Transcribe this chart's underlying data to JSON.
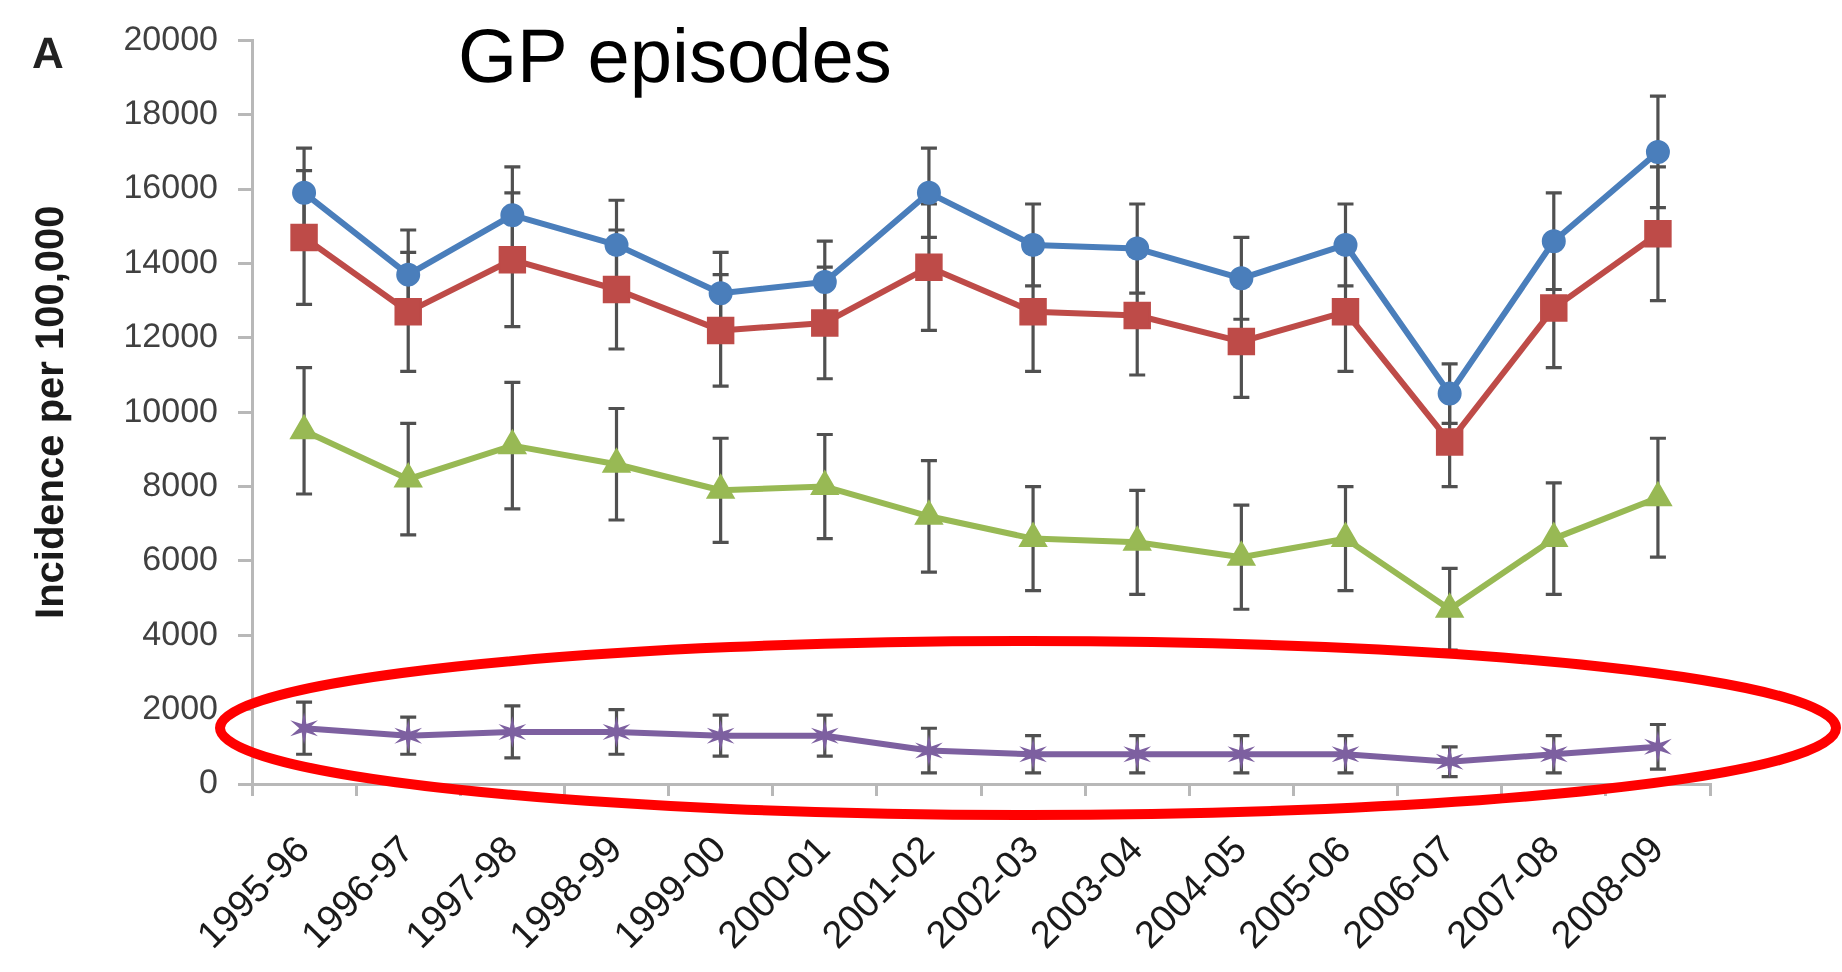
{
  "chart_data": {
    "type": "line",
    "title": "GP episodes",
    "ylabel": "Incidence per 100,000",
    "annotations": [
      "A"
    ],
    "categories": [
      "1995-96",
      "1996-97",
      "1997-98",
      "1998-99",
      "1999-00",
      "2000-01",
      "2001-02",
      "2002-03",
      "2003-04",
      "2004-05",
      "2005-06",
      "2006-07",
      "2007-08",
      "2008-09"
    ],
    "ylim": [
      0,
      20000
    ],
    "yticks": [
      0,
      2000,
      4000,
      6000,
      8000,
      10000,
      12000,
      14000,
      16000,
      18000,
      20000
    ],
    "grid": false,
    "legend": false,
    "line_style": "solid",
    "series": [
      {
        "color": "#4a7ebb",
        "marker": "circle",
        "values": [
          15900,
          13700,
          15300,
          14500,
          13200,
          13500,
          15900,
          14500,
          14400,
          13600,
          14500,
          10500,
          14600,
          17000
        ],
        "errors": [
          1200,
          1200,
          1300,
          1200,
          1100,
          1100,
          1200,
          1100,
          1200,
          1100,
          1100,
          800,
          1300,
          1500
        ]
      },
      {
        "color": "#be4b48",
        "marker": "square",
        "values": [
          14700,
          12700,
          14100,
          13300,
          12200,
          12400,
          13900,
          12700,
          12600,
          11900,
          12700,
          9200,
          12800,
          14800
        ],
        "errors": [
          1800,
          1600,
          1800,
          1600,
          1500,
          1500,
          1700,
          1600,
          1600,
          1500,
          1600,
          1200,
          1600,
          1800
        ]
      },
      {
        "color": "#98b954",
        "marker": "triangle",
        "values": [
          9500,
          8200,
          9100,
          8600,
          7900,
          8000,
          7200,
          6600,
          6500,
          6100,
          6600,
          4700,
          6600,
          7700
        ],
        "errors": [
          1700,
          1500,
          1700,
          1500,
          1400,
          1400,
          1500,
          1400,
          1400,
          1400,
          1400,
          1100,
          1500,
          1600
        ]
      },
      {
        "color": "#7d60a0",
        "marker": "cross",
        "values": [
          1500,
          1300,
          1400,
          1400,
          1300,
          1300,
          900,
          800,
          800,
          800,
          800,
          600,
          800,
          1000
        ],
        "errors": [
          700,
          500,
          700,
          600,
          550,
          550,
          600,
          500,
          500,
          500,
          500,
          400,
          500,
          600
        ]
      }
    ]
  }
}
